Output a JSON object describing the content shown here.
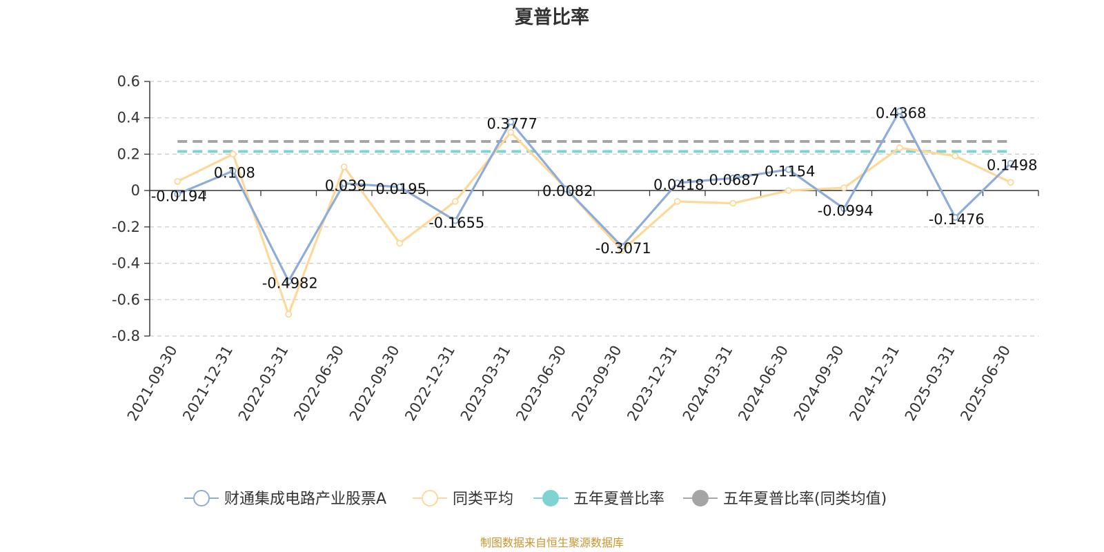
{
  "chart_data": {
    "type": "line",
    "title": "夏普比率",
    "categories": [
      "2021-09-30",
      "2021-12-31",
      "2022-03-31",
      "2022-06-30",
      "2022-09-30",
      "2022-12-31",
      "2023-03-31",
      "2023-06-30",
      "2023-09-30",
      "2023-12-31",
      "2024-03-31",
      "2024-06-30",
      "2024-09-30",
      "2024-12-31",
      "2025-03-31",
      "2025-06-30"
    ],
    "ylim": [
      -0.8,
      0.6
    ],
    "yticks": [
      "0.6",
      "0.4",
      "0.2",
      "0",
      "-0.2",
      "-0.4",
      "-0.6",
      "-0.8"
    ],
    "grid": true,
    "legend_position": "bottom",
    "series": [
      {
        "name": "财通集成电路产业股票A",
        "color": "#8eacd8",
        "values": [
          -0.0194,
          0.108,
          -0.4982,
          0.039,
          0.0195,
          -0.1655,
          0.3777,
          0.0082,
          -0.3071,
          0.0418,
          0.0687,
          0.1154,
          -0.0994,
          0.4368,
          -0.1476,
          0.1498
        ],
        "labels": [
          "-0.0194",
          "0.108",
          "-0.4982",
          "0.039",
          "0.0195",
          "-0.1655",
          "0.3777",
          "0.0082",
          "-0.3071",
          "0.0418",
          "0.0687",
          "0.1154",
          "-0.0994",
          "0.4368",
          "-0.1476",
          "0.1498"
        ]
      },
      {
        "name": "同类平均",
        "color": "#fdd898",
        "values": [
          0.05,
          0.2,
          -0.68,
          0.13,
          -0.29,
          -0.06,
          0.32,
          0.01,
          -0.33,
          -0.06,
          -0.07,
          0.0,
          0.015,
          0.235,
          0.19,
          0.045
        ]
      },
      {
        "name": "五年夏普比率",
        "color": "#7fd3d3",
        "constant": 0.215,
        "dashed": true
      },
      {
        "name": "五年夏普比率(同类均值)",
        "color": "#a5a5a5",
        "constant": 0.27,
        "dashed": true
      }
    ]
  },
  "source": "制图数据来自恒生聚源数据库"
}
